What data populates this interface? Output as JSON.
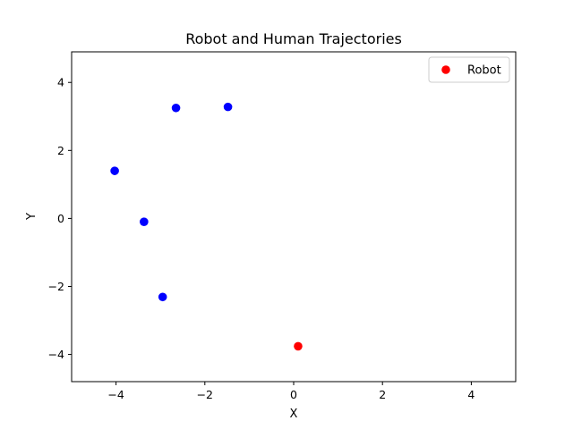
{
  "chart_data": {
    "type": "scatter",
    "title": "Robot and Human Trajectories",
    "xlabel": "X",
    "ylabel": "Y",
    "xlim": [
      -5,
      5
    ],
    "ylim": [
      -4.8,
      4.9
    ],
    "xticks": [
      -4,
      -2,
      0,
      2,
      4
    ],
    "yticks": [
      -4,
      -2,
      0,
      2,
      4
    ],
    "grid": false,
    "legend_position": "top-right",
    "series": [
      {
        "name": "",
        "color": "#0000ff",
        "points": [
          {
            "x": -2.65,
            "y": 3.25
          },
          {
            "x": -1.48,
            "y": 3.28
          },
          {
            "x": -4.03,
            "y": 1.4
          },
          {
            "x": -3.37,
            "y": -0.1
          },
          {
            "x": -2.95,
            "y": -2.31
          }
        ]
      },
      {
        "name": "Robot",
        "color": "#ff0000",
        "points": [
          {
            "x": 0.1,
            "y": -3.76
          }
        ]
      }
    ]
  }
}
